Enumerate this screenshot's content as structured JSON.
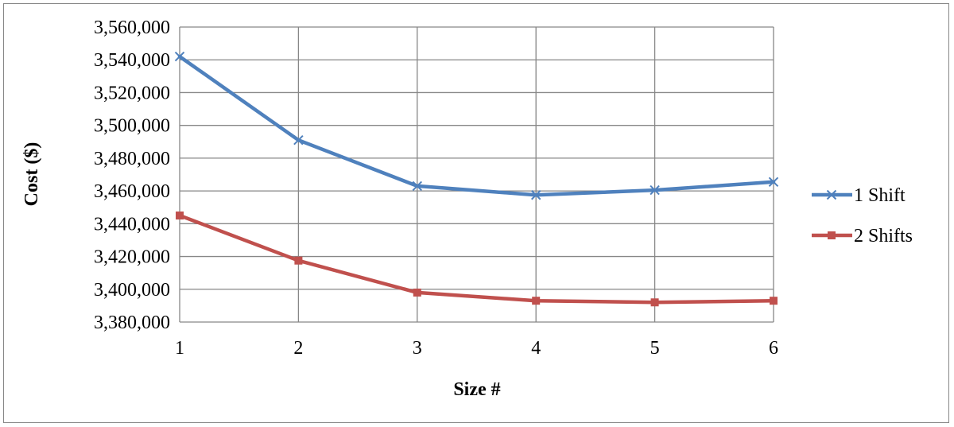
{
  "chart_data": {
    "type": "line",
    "title": "",
    "xlabel": "Size #",
    "ylabel": "Cost ($)",
    "categories": [
      "1",
      "2",
      "3",
      "4",
      "5",
      "6"
    ],
    "ylim": [
      3380000,
      3560000
    ],
    "ytick_step": 20000,
    "grid": true,
    "legend_position": "right",
    "series": [
      {
        "name": "1 Shift",
        "color": "#4f81bd",
        "marker": "x",
        "values": [
          3542000,
          3491000,
          3463000,
          3457500,
          3460500,
          3465500
        ]
      },
      {
        "name": "2 Shifts",
        "color": "#c0504d",
        "marker": "square",
        "values": [
          3445000,
          3417500,
          3398000,
          3393000,
          3392000,
          3393000
        ]
      }
    ]
  }
}
